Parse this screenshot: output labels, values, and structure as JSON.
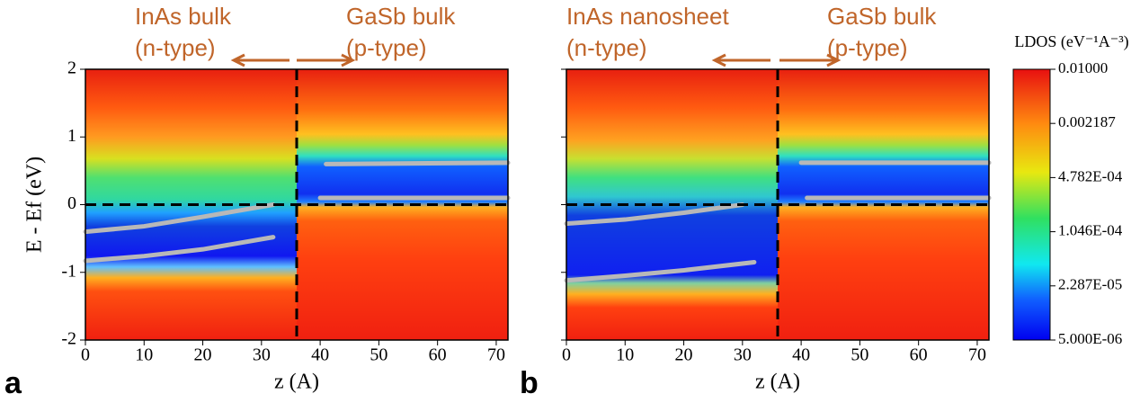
{
  "chart_data": [
    {
      "type": "heatmap",
      "panel_label": "a",
      "ylabel": "E - Ef (eV)",
      "xlabel": "z (A)",
      "annotations": [
        "InAs bulk",
        "(n-type)",
        "GaSb bulk",
        "(p-type)"
      ],
      "xlim": [
        0,
        72
      ],
      "ylim": [
        -2,
        2
      ],
      "xticks": [
        0,
        10,
        20,
        30,
        40,
        50,
        60,
        70
      ],
      "yticks": [
        -2,
        -1,
        0,
        1,
        2
      ],
      "vline": 36,
      "hline": 0,
      "lines": [
        {
          "color": "#b8b8b8",
          "x": [
            0,
            10,
            20,
            32
          ],
          "values": [
            -0.4,
            -0.32,
            -0.18,
            0
          ]
        },
        {
          "color": "#b8b8b8",
          "x": [
            0,
            10,
            20,
            32
          ],
          "values": [
            -0.83,
            -0.76,
            -0.66,
            -0.48
          ]
        },
        {
          "color": "#b8b8b8",
          "x": [
            40,
            72
          ],
          "values": [
            0.1,
            0.1
          ]
        },
        {
          "color": "#b8b8b8",
          "x": [
            41,
            72
          ],
          "values": [
            0.6,
            0.62
          ]
        }
      ]
    },
    {
      "type": "heatmap",
      "panel_label": "b",
      "xlabel": "z (A)",
      "annotations": [
        "InAs nanosheet",
        "(n-type)",
        "GaSb bulk",
        "(p-type)"
      ],
      "xlim": [
        0,
        72
      ],
      "ylim": [
        -2,
        2
      ],
      "xticks": [
        0,
        10,
        20,
        30,
        40,
        50,
        60,
        70
      ],
      "yticks": [
        -2,
        -1,
        0,
        1,
        2
      ],
      "vline": 36,
      "hline": 0,
      "lines": [
        {
          "color": "#b8b8b8",
          "x": [
            0,
            10,
            20,
            30
          ],
          "values": [
            -0.28,
            -0.22,
            -0.12,
            0
          ]
        },
        {
          "color": "#b8b8b8",
          "x": [
            0,
            10,
            20,
            32
          ],
          "values": [
            -1.12,
            -1.05,
            -0.97,
            -0.85
          ]
        },
        {
          "color": "#b8b8b8",
          "x": [
            41,
            72
          ],
          "values": [
            0.1,
            0.1
          ]
        },
        {
          "color": "#b8b8b8",
          "x": [
            40,
            72
          ],
          "values": [
            0.62,
            0.62
          ]
        }
      ]
    }
  ],
  "colorbar": {
    "title": "LDOS (eV⁻¹A⁻³)",
    "scale": "log",
    "lim": [
      5e-06,
      0.01
    ],
    "ticks": [
      {
        "value": 0.01,
        "label": "0.01000"
      },
      0.002187,
      {
        "value": 0.0004782,
        "label": "4.782E-04"
      },
      {
        "value": 0.0001046,
        "label": "1.046E-04"
      },
      {
        "value": 2.287e-05,
        "label": "2.287E-05"
      },
      {
        "value": 5e-06,
        "label": "5.000E-06"
      }
    ]
  }
}
